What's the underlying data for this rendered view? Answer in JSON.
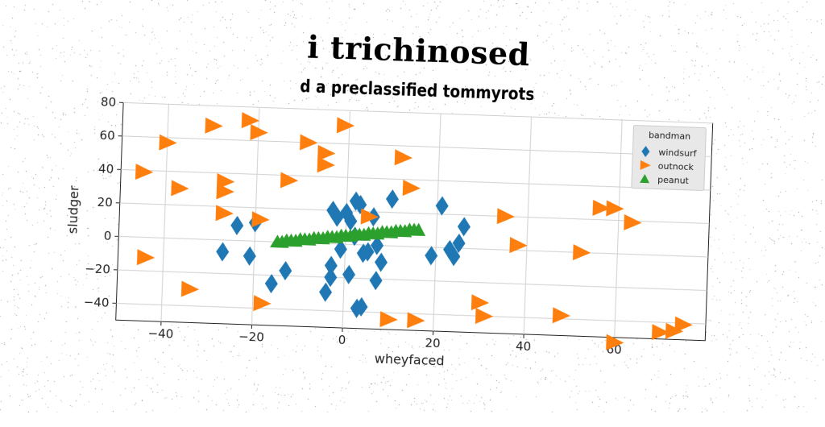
{
  "chart_data": {
    "type": "scatter",
    "title": "i trichinosed",
    "subtitle": "d a preclassified tommyrots",
    "xlabel": "wheyfaced",
    "ylabel": "sludger",
    "xlim": [
      -50,
      80
    ],
    "ylim": [
      -50,
      80
    ],
    "xticks": [
      -40,
      -20,
      0,
      20,
      40,
      60
    ],
    "yticks": [
      -40,
      -20,
      0,
      20,
      40,
      60,
      80
    ],
    "grid": true,
    "legend": {
      "title": "bandman",
      "position": "top-right"
    },
    "series": [
      {
        "name": "windsurf",
        "marker": "diamond",
        "color": "#1f77b4",
        "points": [
          [
            -27,
            -7
          ],
          [
            -24,
            9
          ],
          [
            -21,
            -9
          ],
          [
            -20,
            11
          ],
          [
            -16,
            -25
          ],
          [
            -13,
            -17
          ],
          [
            -4,
            -29
          ],
          [
            -3,
            20
          ],
          [
            -3,
            -13
          ],
          [
            -3,
            -20
          ],
          [
            -2,
            16
          ],
          [
            -1,
            -3
          ],
          [
            0,
            19
          ],
          [
            1,
            -18
          ],
          [
            1,
            14
          ],
          [
            2,
            5
          ],
          [
            2,
            26
          ],
          [
            3,
            24
          ],
          [
            3,
            -38
          ],
          [
            4,
            -37
          ],
          [
            4,
            -5
          ],
          [
            5,
            -4
          ],
          [
            6,
            17
          ],
          [
            7,
            0
          ],
          [
            7,
            -21
          ],
          [
            8,
            -10
          ],
          [
            10,
            28
          ],
          [
            19,
            -5
          ],
          [
            21,
            25
          ],
          [
            23,
            -1
          ],
          [
            24,
            -5
          ],
          [
            25,
            3
          ],
          [
            26,
            13
          ]
        ]
      },
      {
        "name": "outnock",
        "marker": "triangle-right",
        "color": "#ff7f0e",
        "points": [
          [
            -45,
            39
          ],
          [
            -44,
            -12
          ],
          [
            -40,
            57
          ],
          [
            -37,
            30
          ],
          [
            -34,
            -30
          ],
          [
            -30,
            68
          ],
          [
            -27,
            16
          ],
          [
            -27,
            29
          ],
          [
            -27,
            35
          ],
          [
            -22,
            72
          ],
          [
            -20,
            65
          ],
          [
            -19,
            13
          ],
          [
            -18,
            -37
          ],
          [
            -13,
            37
          ],
          [
            -9,
            60
          ],
          [
            -5,
            47
          ],
          [
            -5,
            54
          ],
          [
            -1,
            71
          ],
          [
            5,
            17
          ],
          [
            10,
            -44
          ],
          [
            12,
            53
          ],
          [
            14,
            35
          ],
          [
            16,
            -44
          ],
          [
            30,
            -32
          ],
          [
            31,
            -40
          ],
          [
            35,
            20
          ],
          [
            38,
            3
          ],
          [
            48,
            -38
          ],
          [
            52,
            0
          ],
          [
            56,
            27
          ],
          [
            59,
            27
          ],
          [
            60,
            -53
          ],
          [
            63,
            19
          ],
          [
            70,
            -46
          ],
          [
            73,
            -45
          ],
          [
            75,
            -41
          ]
        ]
      },
      {
        "name": "peanut",
        "marker": "triangle-up",
        "color": "#2ca02c",
        "points": [
          [
            -15,
            0
          ],
          [
            -14,
            0
          ],
          [
            -13,
            1
          ],
          [
            -12,
            1
          ],
          [
            -11,
            1
          ],
          [
            -10,
            2
          ],
          [
            -9,
            2
          ],
          [
            -8,
            2
          ],
          [
            -7,
            3
          ],
          [
            -6,
            3
          ],
          [
            -5,
            3
          ],
          [
            -4,
            4
          ],
          [
            -3,
            4
          ],
          [
            -2,
            4
          ],
          [
            -1,
            5
          ],
          [
            0,
            5
          ],
          [
            1,
            5
          ],
          [
            2,
            6
          ],
          [
            3,
            6
          ],
          [
            4,
            6
          ],
          [
            5,
            7
          ],
          [
            6,
            7
          ],
          [
            7,
            7
          ],
          [
            8,
            8
          ],
          [
            9,
            8
          ],
          [
            10,
            8
          ],
          [
            11,
            9
          ],
          [
            12,
            9
          ],
          [
            13,
            9
          ],
          [
            14,
            10
          ],
          [
            15,
            10
          ],
          [
            16,
            10
          ]
        ]
      }
    ]
  }
}
